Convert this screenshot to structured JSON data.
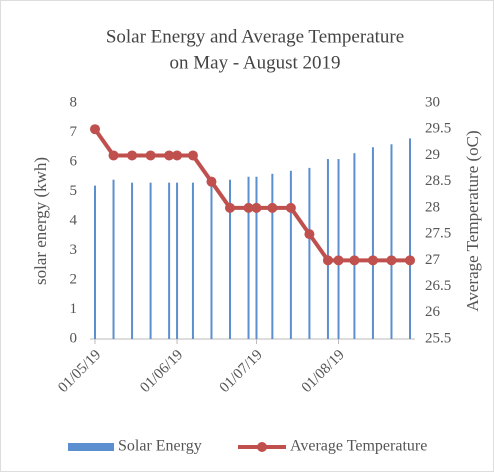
{
  "chart_data": {
    "type": "bar_line",
    "title": [
      "Solar Energy and Average Temperature",
      "on  May - August 2019"
    ],
    "x": [
      "2019-05-01",
      "2019-05-08",
      "2019-05-15",
      "2019-05-22",
      "2019-05-29",
      "2019-06-01",
      "2019-06-07",
      "2019-06-14",
      "2019-06-21",
      "2019-06-28",
      "2019-07-01",
      "2019-07-07",
      "2019-07-14",
      "2019-07-21",
      "2019-07-28",
      "2019-08-01",
      "2019-08-07",
      "2019-08-14",
      "2019-08-21",
      "2019-08-28"
    ],
    "xlim": [
      "2019-05-01",
      "2019-08-28"
    ],
    "xticks": [
      {
        "value": "2019-05-01",
        "label": "01/05/19"
      },
      {
        "value": "2019-06-01",
        "label": "01/06/19"
      },
      {
        "value": "2019-07-01",
        "label": "01/07/19"
      },
      {
        "value": "2019-08-01",
        "label": "01/08/19"
      }
    ],
    "ylabel": "solar energy (kwh)",
    "y2label": "Average Temperature (oC)",
    "ylim": [
      0,
      8
    ],
    "yticks": [
      0,
      1,
      2,
      3,
      4,
      5,
      6,
      7,
      8
    ],
    "y2lim": [
      25.5,
      30
    ],
    "y2ticks": [
      25.5,
      26,
      26.5,
      27,
      27.5,
      28,
      28.5,
      29,
      29.5,
      30
    ],
    "series": [
      {
        "name": "Solar Energy",
        "type": "bar",
        "color": "#5b8fd0",
        "values": [
          5.2,
          5.4,
          5.3,
          5.3,
          5.3,
          5.3,
          5.3,
          5.4,
          5.4,
          5.5,
          5.5,
          5.6,
          5.7,
          5.8,
          6.1,
          6.1,
          6.3,
          6.5,
          6.6,
          6.8
        ]
      },
      {
        "name": "Average Temperature",
        "type": "line",
        "axis": "y2",
        "color": "#c0504d",
        "values": [
          29.5,
          29,
          29,
          29,
          29,
          29,
          29,
          28.5,
          28,
          28,
          28,
          28,
          28,
          27.5,
          27,
          27,
          27,
          27,
          27,
          27
        ]
      }
    ],
    "legend": "bottom"
  }
}
